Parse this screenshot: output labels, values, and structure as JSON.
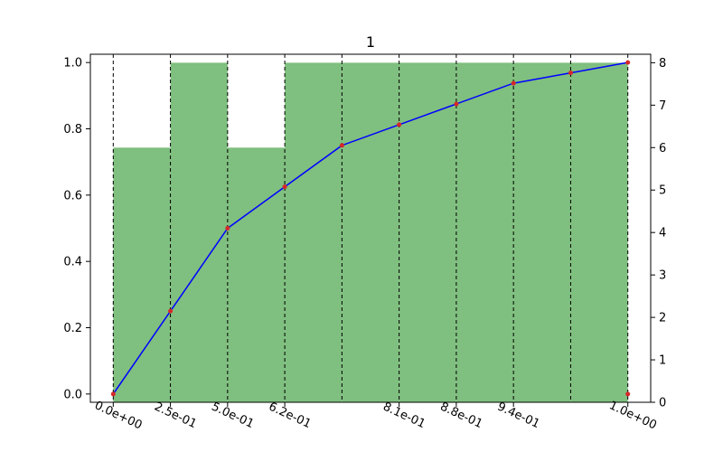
{
  "chart_data": {
    "type": "bar+line",
    "title": "1",
    "bins": {
      "edges": [
        0.0,
        0.125,
        0.25,
        0.375,
        0.5,
        0.625,
        0.75,
        0.875,
        1.0,
        1.125
      ],
      "counts": [
        6,
        8,
        6,
        8,
        8,
        8,
        8,
        8,
        8
      ],
      "color": "#7fbf7f"
    },
    "cdf_line": {
      "x": [
        0.0,
        0.125,
        0.25,
        0.375,
        0.5,
        0.625,
        0.75,
        0.875,
        1.0,
        1.125
      ],
      "y": [
        0.0,
        0.25,
        0.5,
        0.625,
        0.75,
        0.8125,
        0.875,
        0.9375,
        0.96875,
        1.0
      ],
      "color": "#0000ff",
      "marker_color": "#d62728"
    },
    "vlines_x": [
      0.0,
      0.125,
      0.25,
      0.375,
      0.5,
      0.625,
      0.75,
      0.875,
      1.0,
      1.125
    ],
    "extra_points": [
      {
        "x": 1.125,
        "y": 0.0
      }
    ],
    "x_ticks": [
      {
        "x": 0.0,
        "label": "0.0e+00"
      },
      {
        "x": 0.125,
        "label": "2.5e-01"
      },
      {
        "x": 0.25,
        "label": "5.0e-01"
      },
      {
        "x": 0.375,
        "label": "6.2e-01"
      },
      {
        "x": 0.625,
        "label": "8.1e-01"
      },
      {
        "x": 0.75,
        "label": "8.8e-01"
      },
      {
        "x": 0.875,
        "label": "9.4e-01"
      },
      {
        "x": 1.125,
        "label": "1.0e+00"
      }
    ],
    "y_left": {
      "range": [
        -0.025,
        1.025
      ],
      "ticks": [
        0.0,
        0.2,
        0.4,
        0.6,
        0.8,
        1.0
      ],
      "labels": [
        "0.0",
        "0.2",
        "0.4",
        "0.6",
        "0.8",
        "1.0"
      ]
    },
    "y_right": {
      "range": [
        0,
        8.2
      ],
      "ticks": [
        0,
        1,
        2,
        3,
        4,
        5,
        6,
        7,
        8
      ],
      "labels": [
        "0",
        "1",
        "2",
        "3",
        "4",
        "5",
        "6",
        "7",
        "8"
      ]
    },
    "x_range": [
      -0.05,
      1.175
    ]
  }
}
